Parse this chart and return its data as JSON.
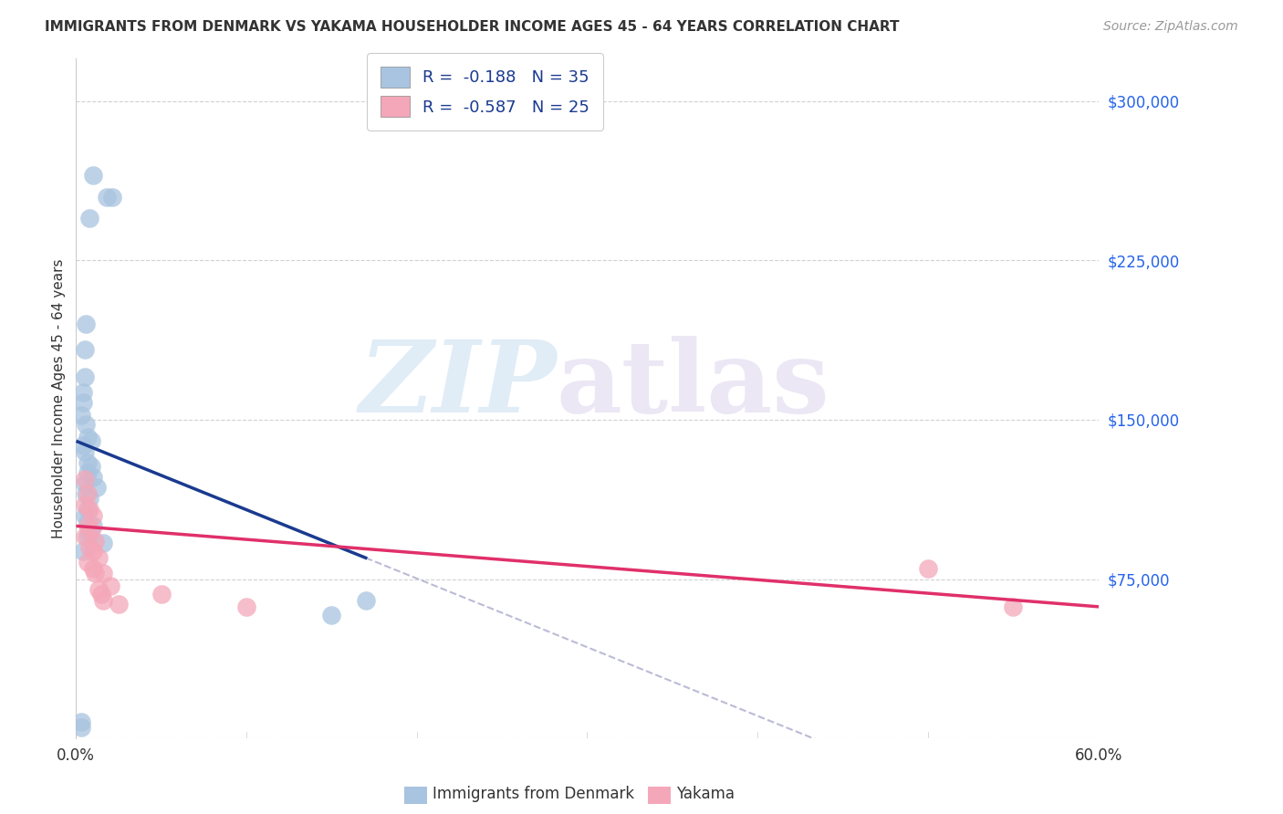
{
  "title": "IMMIGRANTS FROM DENMARK VS YAKAMA HOUSEHOLDER INCOME AGES 45 - 64 YEARS CORRELATION CHART",
  "source": "Source: ZipAtlas.com",
  "ylabel": "Householder Income Ages 45 - 64 years",
  "xlim": [
    0,
    0.6
  ],
  "ylim": [
    0,
    320000
  ],
  "yticks": [
    0,
    75000,
    150000,
    225000,
    300000
  ],
  "ytick_labels": [
    "",
    "$75,000",
    "$150,000",
    "$225,000",
    "$300,000"
  ],
  "xticks": [
    0.0,
    0.1,
    0.2,
    0.3,
    0.4,
    0.5,
    0.6
  ],
  "xtick_labels": [
    "0.0%",
    "",
    "",
    "",
    "",
    "",
    "60.0%"
  ],
  "denmark_color": "#a8c4e0",
  "yakama_color": "#f4a7b9",
  "denmark_line_color": "#1a3a8f",
  "yakama_line_color": "#e0306a",
  "legend_denmark_R": "-0.188",
  "legend_denmark_N": "35",
  "legend_yakama_R": "-0.587",
  "legend_yakama_N": "25",
  "denmark_points": [
    [
      0.01,
      265000
    ],
    [
      0.018,
      255000
    ],
    [
      0.021,
      255000
    ],
    [
      0.008,
      245000
    ],
    [
      0.006,
      195000
    ],
    [
      0.005,
      183000
    ],
    [
      0.005,
      170000
    ],
    [
      0.004,
      163000
    ],
    [
      0.004,
      158000
    ],
    [
      0.003,
      152000
    ],
    [
      0.006,
      148000
    ],
    [
      0.007,
      142000
    ],
    [
      0.009,
      140000
    ],
    [
      0.004,
      138000
    ],
    [
      0.005,
      135000
    ],
    [
      0.007,
      130000
    ],
    [
      0.009,
      128000
    ],
    [
      0.007,
      125000
    ],
    [
      0.01,
      123000
    ],
    [
      0.005,
      120000
    ],
    [
      0.012,
      118000
    ],
    [
      0.006,
      115000
    ],
    [
      0.008,
      113000
    ],
    [
      0.007,
      108000
    ],
    [
      0.005,
      105000
    ],
    [
      0.007,
      102000
    ],
    [
      0.01,
      100000
    ],
    [
      0.008,
      97000
    ],
    [
      0.007,
      95000
    ],
    [
      0.016,
      92000
    ],
    [
      0.004,
      88000
    ],
    [
      0.17,
      65000
    ],
    [
      0.15,
      58000
    ],
    [
      0.003,
      8000
    ],
    [
      0.003,
      5000
    ]
  ],
  "yakama_points": [
    [
      0.005,
      122000
    ],
    [
      0.007,
      115000
    ],
    [
      0.005,
      110000
    ],
    [
      0.008,
      108000
    ],
    [
      0.01,
      105000
    ],
    [
      0.007,
      100000
    ],
    [
      0.009,
      98000
    ],
    [
      0.005,
      95000
    ],
    [
      0.011,
      93000
    ],
    [
      0.008,
      90000
    ],
    [
      0.01,
      88000
    ],
    [
      0.013,
      85000
    ],
    [
      0.007,
      83000
    ],
    [
      0.01,
      80000
    ],
    [
      0.011,
      78000
    ],
    [
      0.016,
      78000
    ],
    [
      0.02,
      72000
    ],
    [
      0.013,
      70000
    ],
    [
      0.015,
      68000
    ],
    [
      0.05,
      68000
    ],
    [
      0.016,
      65000
    ],
    [
      0.025,
      63000
    ],
    [
      0.1,
      62000
    ],
    [
      0.5,
      80000
    ],
    [
      0.55,
      62000
    ]
  ]
}
